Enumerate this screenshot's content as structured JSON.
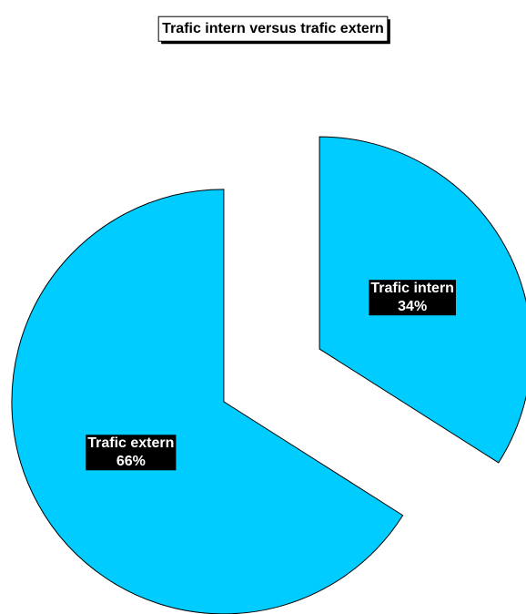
{
  "chart_data": {
    "type": "pie",
    "title": "Trafic intern versus trafic extern",
    "categories": [
      "Trafic intern",
      "Trafic extern"
    ],
    "values": [
      34,
      66
    ],
    "value_labels": [
      "34%",
      "66%"
    ],
    "color": "#00ccff",
    "exploded": true
  }
}
